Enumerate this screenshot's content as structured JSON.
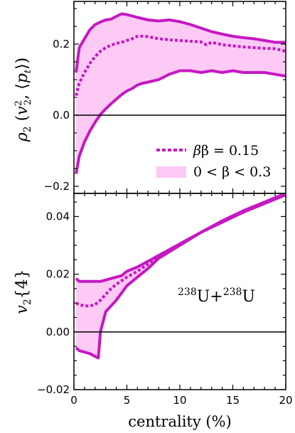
{
  "chart_data": [
    {
      "type": "line",
      "panel": "top",
      "ylabel": "ρ₂(v₂², ⟨p_t⟩)",
      "xlim": [
        0,
        20
      ],
      "ylim": [
        -0.22,
        0.32
      ],
      "xticks": [
        0,
        5,
        10,
        15,
        20
      ],
      "yticks": [
        -0.2,
        0.0,
        0.2
      ],
      "ytick_labels": [
        "−0.2",
        "0.0",
        "0.2"
      ],
      "reference_line_y": 0.0,
      "legend_position": "lower-right",
      "legend": [
        {
          "label_pre": "β = ",
          "label_val": "0.15",
          "style": "dotted-line"
        },
        {
          "label_pre": "0 < β < ",
          "label_val": "0.3",
          "style": "filled-band"
        }
      ],
      "series": [
        {
          "name": "β = 0.15",
          "x": [
            0.2,
            0.5,
            1,
            1.5,
            2,
            2.5,
            3,
            3.5,
            4,
            4.5,
            5,
            5.5,
            6,
            6.5,
            7,
            7.5,
            8,
            9,
            10,
            11,
            12,
            12.5,
            13,
            14,
            15,
            16,
            17,
            18,
            19,
            20
          ],
          "y": [
            0.055,
            0.09,
            0.12,
            0.145,
            0.165,
            0.18,
            0.19,
            0.197,
            0.202,
            0.205,
            0.21,
            0.215,
            0.222,
            0.222,
            0.221,
            0.218,
            0.215,
            0.212,
            0.21,
            0.208,
            0.206,
            0.198,
            0.205,
            0.198,
            0.195,
            0.192,
            0.19,
            0.188,
            0.187,
            0.18
          ]
        },
        {
          "name": "0 < β < 0.3 (upper)",
          "x": [
            0.2,
            0.5,
            1,
            1.5,
            2,
            2.5,
            3,
            3.5,
            4,
            4.5,
            5,
            6,
            7,
            8,
            9,
            10,
            11,
            12,
            13,
            14,
            15,
            16,
            17,
            18,
            19,
            20
          ],
          "y": [
            0.12,
            0.19,
            0.215,
            0.24,
            0.255,
            0.262,
            0.268,
            0.27,
            0.278,
            0.285,
            0.283,
            0.275,
            0.268,
            0.265,
            0.268,
            0.263,
            0.255,
            0.245,
            0.235,
            0.228,
            0.222,
            0.218,
            0.215,
            0.21,
            0.205,
            0.205
          ]
        },
        {
          "name": "0 < β < 0.3 (lower)",
          "x": [
            0.2,
            0.5,
            1,
            1.5,
            2,
            2.5,
            3,
            3.5,
            4,
            4.5,
            5,
            5.5,
            6,
            6.5,
            7,
            8,
            9,
            10,
            11,
            12,
            13,
            14,
            15,
            16,
            17,
            18,
            19,
            20
          ],
          "y": [
            -0.165,
            -0.115,
            -0.075,
            -0.045,
            -0.02,
            0.002,
            0.018,
            0.032,
            0.045,
            0.058,
            0.068,
            0.075,
            0.085,
            0.09,
            0.093,
            0.1,
            0.115,
            0.125,
            0.125,
            0.12,
            0.125,
            0.12,
            0.125,
            0.12,
            0.12,
            0.12,
            0.115,
            0.11
          ]
        }
      ]
    },
    {
      "type": "line",
      "panel": "bottom",
      "xlabel": "centrality (%)",
      "ylabel": "v₂{4}",
      "xlim": [
        0,
        20
      ],
      "ylim": [
        -0.02,
        0.048
      ],
      "xticks": [
        0,
        5,
        10,
        15,
        20
      ],
      "yticks": [
        -0.02,
        0.0,
        0.02,
        0.04
      ],
      "ytick_labels": [
        "−0.02",
        "0.00",
        "0.02",
        "0.04"
      ],
      "reference_line_y": 0.0,
      "annotation": {
        "left_sup": "238",
        "left_base": "U",
        "plus": "+",
        "right_sup": "238",
        "right_base": "U"
      },
      "series": [
        {
          "name": "β = 0.15",
          "x": [
            0.2,
            0.5,
            1,
            1.5,
            2,
            2.5,
            3,
            3.5,
            4,
            5,
            6,
            7,
            8,
            10,
            12,
            14,
            16,
            18,
            20
          ],
          "y": [
            0.01,
            0.0095,
            0.009,
            0.009,
            0.0095,
            0.011,
            0.013,
            0.015,
            0.0165,
            0.019,
            0.021,
            0.0235,
            0.026,
            0.0305,
            0.0345,
            0.0385,
            0.0415,
            0.0445,
            0.0475
          ]
        },
        {
          "name": "0 < β < 0.3 (upper)",
          "x": [
            0.2,
            0.5,
            1,
            1.5,
            2,
            2.5,
            3,
            3.5,
            4,
            4.5,
            5,
            6,
            7,
            8,
            10,
            12,
            14,
            16,
            18,
            20
          ],
          "y": [
            0.0185,
            0.0175,
            0.0175,
            0.0175,
            0.0175,
            0.0175,
            0.018,
            0.0185,
            0.019,
            0.0195,
            0.021,
            0.0225,
            0.0245,
            0.0265,
            0.0305,
            0.0345,
            0.0385,
            0.042,
            0.045,
            0.048
          ]
        },
        {
          "name": "0 < β < 0.3 (lower)",
          "x": [
            0.2,
            0.5,
            1,
            1.5,
            2,
            2.3,
            2.5,
            3,
            3.5,
            4,
            5,
            6,
            7,
            8,
            10,
            12,
            14,
            16,
            18,
            20
          ],
          "y": [
            -0.0055,
            -0.0065,
            -0.007,
            -0.0075,
            -0.0085,
            -0.009,
            0.0,
            0.007,
            0.009,
            0.011,
            0.016,
            0.019,
            0.022,
            0.0255,
            0.03,
            0.0345,
            0.038,
            0.0415,
            0.0445,
            0.0475
          ]
        }
      ]
    }
  ],
  "colors": {
    "line": "#c518c2",
    "band": "#fdcaf5",
    "axis": "#000000"
  }
}
